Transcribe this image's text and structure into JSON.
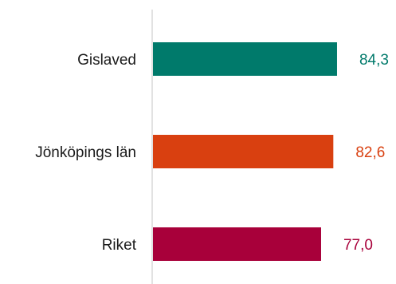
{
  "chart_data": {
    "type": "bar",
    "orientation": "horizontal",
    "categories": [
      "Gislaved",
      "Jönköpings län",
      "Riket"
    ],
    "values": [
      84.3,
      82.6,
      77.0
    ],
    "value_labels": [
      "84,3",
      "82,6",
      "77,0"
    ],
    "colors": [
      "#007A6B",
      "#D94010",
      "#A8003A"
    ],
    "xlim": [
      0,
      100
    ],
    "grid": false,
    "legend": "none",
    "title": "",
    "xlabel": "",
    "ylabel": ""
  }
}
